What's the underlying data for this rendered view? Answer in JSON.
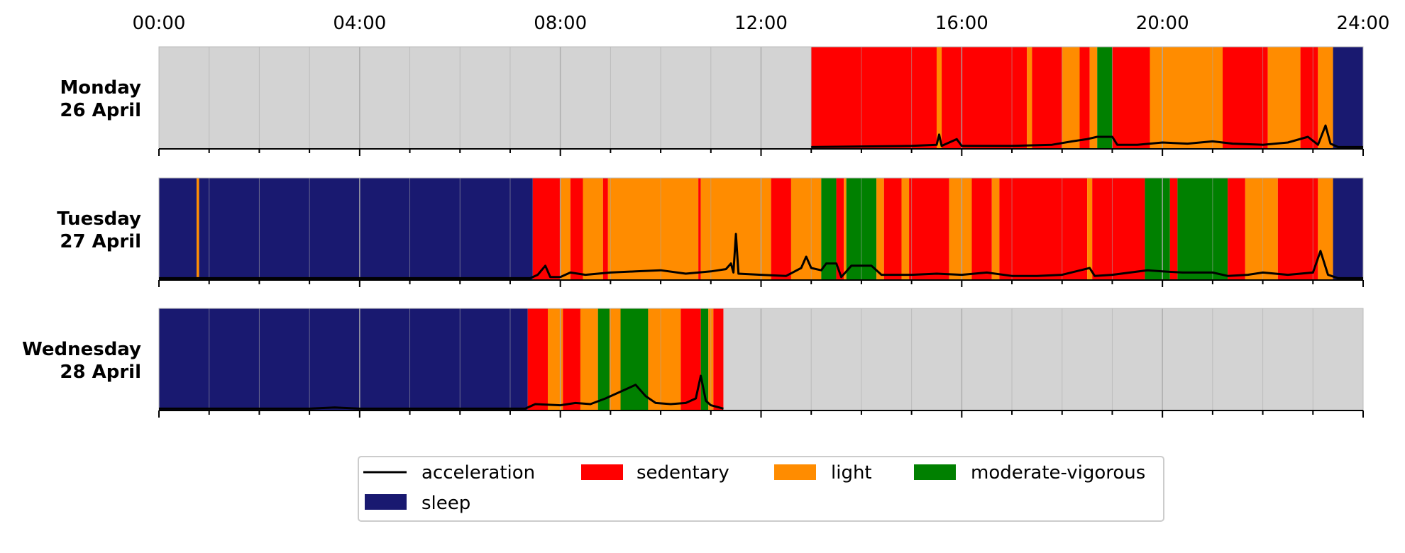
{
  "chart_data": {
    "type": "timeline",
    "x_range_hours": [
      0,
      24
    ],
    "x_tick_labels": [
      "00:00",
      "04:00",
      "08:00",
      "12:00",
      "16:00",
      "20:00",
      "24:00"
    ],
    "x_tick_hours": [
      0,
      4,
      8,
      12,
      16,
      20,
      24
    ],
    "minor_tick_step_hours": 1,
    "colors": {
      "no_data": "#d3d3d3",
      "sleep": "#191970",
      "sedentary": "#ff0000",
      "light": "#ff8c00",
      "moderate-vigorous": "#008000",
      "acceleration": "#000000",
      "gridline": "#a9a9a9"
    },
    "legend": {
      "placement": "bottom-center",
      "entries": [
        {
          "key": "acceleration",
          "label": "acceleration",
          "kind": "line"
        },
        {
          "key": "sedentary",
          "label": "sedentary",
          "kind": "patch"
        },
        {
          "key": "light",
          "label": "light",
          "kind": "patch"
        },
        {
          "key": "moderate-vigorous",
          "label": "moderate-vigorous",
          "kind": "patch"
        },
        {
          "key": "sleep",
          "label": "sleep",
          "kind": "patch"
        }
      ]
    },
    "days": [
      {
        "label_line1": "Monday",
        "label_line2": "26 April",
        "segments": [
          [
            0,
            13.0,
            "no_data"
          ],
          [
            13.0,
            15.5,
            "sedentary"
          ],
          [
            15.5,
            15.6,
            "light"
          ],
          [
            15.6,
            17.3,
            "sedentary"
          ],
          [
            17.3,
            17.4,
            "light"
          ],
          [
            17.4,
            18.0,
            "sedentary"
          ],
          [
            18.0,
            18.35,
            "light"
          ],
          [
            18.35,
            18.55,
            "sedentary"
          ],
          [
            18.55,
            18.7,
            "light"
          ],
          [
            18.7,
            19.0,
            "moderate-vigorous"
          ],
          [
            19.0,
            19.75,
            "sedentary"
          ],
          [
            19.75,
            21.2,
            "light"
          ],
          [
            21.2,
            22.1,
            "sedentary"
          ],
          [
            22.1,
            22.75,
            "light"
          ],
          [
            22.75,
            23.1,
            "sedentary"
          ],
          [
            23.1,
            23.4,
            "light"
          ],
          [
            23.4,
            24,
            "sleep"
          ]
        ],
        "acceleration": [
          [
            13.0,
            0.01
          ],
          [
            15.0,
            0.02
          ],
          [
            15.5,
            0.03
          ],
          [
            15.55,
            0.12
          ],
          [
            15.6,
            0.02
          ],
          [
            15.9,
            0.08
          ],
          [
            16.0,
            0.02
          ],
          [
            17.0,
            0.02
          ],
          [
            17.8,
            0.03
          ],
          [
            18.2,
            0.06
          ],
          [
            18.5,
            0.08
          ],
          [
            18.7,
            0.1
          ],
          [
            19.0,
            0.1
          ],
          [
            19.1,
            0.03
          ],
          [
            19.5,
            0.03
          ],
          [
            20.0,
            0.05
          ],
          [
            20.5,
            0.04
          ],
          [
            21.0,
            0.06
          ],
          [
            21.4,
            0.04
          ],
          [
            22.0,
            0.03
          ],
          [
            22.5,
            0.05
          ],
          [
            22.9,
            0.1
          ],
          [
            23.1,
            0.03
          ],
          [
            23.25,
            0.2
          ],
          [
            23.35,
            0.04
          ],
          [
            23.5,
            0.01
          ],
          [
            24.0,
            0.01
          ]
        ]
      },
      {
        "label_line1": "Tuesday",
        "label_line2": "27 April",
        "segments": [
          [
            0,
            0.75,
            "sleep"
          ],
          [
            0.75,
            0.8,
            "light"
          ],
          [
            0.8,
            7.45,
            "sleep"
          ],
          [
            7.45,
            8.0,
            "sedentary"
          ],
          [
            8.0,
            8.2,
            "light"
          ],
          [
            8.2,
            8.45,
            "sedentary"
          ],
          [
            8.45,
            8.85,
            "light"
          ],
          [
            8.85,
            8.95,
            "sedentary"
          ],
          [
            8.95,
            10.75,
            "light"
          ],
          [
            10.75,
            10.8,
            "sedentary"
          ],
          [
            10.8,
            12.2,
            "light"
          ],
          [
            12.2,
            12.6,
            "sedentary"
          ],
          [
            12.6,
            13.2,
            "light"
          ],
          [
            13.2,
            13.5,
            "moderate-vigorous"
          ],
          [
            13.5,
            13.65,
            "sedentary"
          ],
          [
            13.65,
            13.7,
            "light"
          ],
          [
            13.7,
            14.3,
            "moderate-vigorous"
          ],
          [
            14.3,
            14.45,
            "light"
          ],
          [
            14.45,
            14.8,
            "sedentary"
          ],
          [
            14.8,
            14.95,
            "light"
          ],
          [
            14.95,
            15.75,
            "sedentary"
          ],
          [
            15.75,
            16.2,
            "light"
          ],
          [
            16.2,
            16.6,
            "sedentary"
          ],
          [
            16.6,
            16.75,
            "light"
          ],
          [
            16.75,
            18.5,
            "sedentary"
          ],
          [
            18.5,
            18.6,
            "light"
          ],
          [
            18.6,
            19.65,
            "sedentary"
          ],
          [
            19.65,
            20.15,
            "moderate-vigorous"
          ],
          [
            20.15,
            20.3,
            "sedentary"
          ],
          [
            20.3,
            21.3,
            "moderate-vigorous"
          ],
          [
            21.3,
            21.65,
            "sedentary"
          ],
          [
            21.65,
            22.3,
            "light"
          ],
          [
            22.3,
            23.1,
            "sedentary"
          ],
          [
            23.1,
            23.4,
            "light"
          ],
          [
            23.4,
            24,
            "sleep"
          ]
        ],
        "acceleration": [
          [
            0,
            0.01
          ],
          [
            7.4,
            0.01
          ],
          [
            7.55,
            0.04
          ],
          [
            7.7,
            0.12
          ],
          [
            7.8,
            0.02
          ],
          [
            8.0,
            0.02
          ],
          [
            8.2,
            0.06
          ],
          [
            8.5,
            0.04
          ],
          [
            9.0,
            0.06
          ],
          [
            9.5,
            0.07
          ],
          [
            10.0,
            0.08
          ],
          [
            10.5,
            0.05
          ],
          [
            11.0,
            0.07
          ],
          [
            11.3,
            0.09
          ],
          [
            11.4,
            0.14
          ],
          [
            11.45,
            0.06
          ],
          [
            11.5,
            0.4
          ],
          [
            11.55,
            0.05
          ],
          [
            12.0,
            0.04
          ],
          [
            12.5,
            0.03
          ],
          [
            12.8,
            0.1
          ],
          [
            12.9,
            0.2
          ],
          [
            13.0,
            0.1
          ],
          [
            13.2,
            0.08
          ],
          [
            13.3,
            0.14
          ],
          [
            13.5,
            0.14
          ],
          [
            13.6,
            0.02
          ],
          [
            13.8,
            0.12
          ],
          [
            14.2,
            0.12
          ],
          [
            14.4,
            0.04
          ],
          [
            15.0,
            0.04
          ],
          [
            15.5,
            0.05
          ],
          [
            16.0,
            0.04
          ],
          [
            16.5,
            0.06
          ],
          [
            17.0,
            0.03
          ],
          [
            17.5,
            0.03
          ],
          [
            18.0,
            0.04
          ],
          [
            18.55,
            0.1
          ],
          [
            18.65,
            0.03
          ],
          [
            19.0,
            0.04
          ],
          [
            19.7,
            0.08
          ],
          [
            20.0,
            0.07
          ],
          [
            20.4,
            0.06
          ],
          [
            21.0,
            0.06
          ],
          [
            21.3,
            0.03
          ],
          [
            21.7,
            0.04
          ],
          [
            22.0,
            0.06
          ],
          [
            22.5,
            0.04
          ],
          [
            23.0,
            0.06
          ],
          [
            23.15,
            0.25
          ],
          [
            23.3,
            0.04
          ],
          [
            23.5,
            0.01
          ],
          [
            24.0,
            0.01
          ]
        ]
      },
      {
        "label_line1": "Wednesday",
        "label_line2": "28 April",
        "segments": [
          [
            0,
            7.35,
            "sleep"
          ],
          [
            7.35,
            7.75,
            "sedentary"
          ],
          [
            7.75,
            8.05,
            "light"
          ],
          [
            8.05,
            8.4,
            "sedentary"
          ],
          [
            8.4,
            8.75,
            "light"
          ],
          [
            8.75,
            8.98,
            "moderate-vigorous"
          ],
          [
            8.98,
            9.2,
            "light"
          ],
          [
            9.2,
            9.75,
            "moderate-vigorous"
          ],
          [
            9.75,
            10.4,
            "light"
          ],
          [
            10.4,
            10.8,
            "sedentary"
          ],
          [
            10.8,
            10.95,
            "moderate-vigorous"
          ],
          [
            10.95,
            11.05,
            "light"
          ],
          [
            11.05,
            11.25,
            "sedentary"
          ],
          [
            11.25,
            24,
            "no_data"
          ]
        ],
        "acceleration": [
          [
            0,
            0.01
          ],
          [
            3.0,
            0.01
          ],
          [
            3.5,
            0.02
          ],
          [
            4.0,
            0.01
          ],
          [
            7.3,
            0.01
          ],
          [
            7.5,
            0.05
          ],
          [
            8.0,
            0.04
          ],
          [
            8.3,
            0.06
          ],
          [
            8.6,
            0.05
          ],
          [
            8.9,
            0.1
          ],
          [
            9.1,
            0.14
          ],
          [
            9.3,
            0.18
          ],
          [
            9.5,
            0.22
          ],
          [
            9.7,
            0.12
          ],
          [
            9.9,
            0.06
          ],
          [
            10.2,
            0.05
          ],
          [
            10.5,
            0.06
          ],
          [
            10.7,
            0.1
          ],
          [
            10.8,
            0.3
          ],
          [
            10.9,
            0.08
          ],
          [
            11.0,
            0.04
          ],
          [
            11.25,
            0.01
          ]
        ]
      }
    ]
  }
}
